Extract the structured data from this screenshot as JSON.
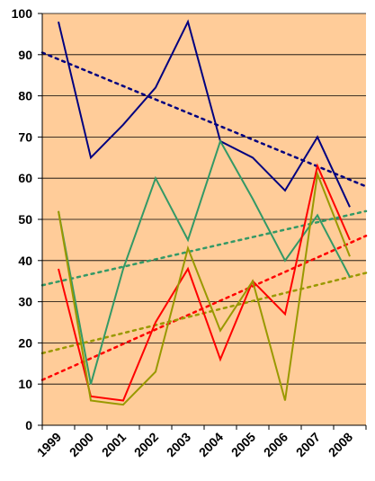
{
  "chart_data": {
    "type": "line",
    "categories": [
      "1999",
      "2000",
      "2001",
      "2002",
      "2003",
      "2004",
      "2005",
      "2006",
      "2007",
      "2008"
    ],
    "ylim": [
      0,
      100
    ],
    "y_ticks": [
      0,
      10,
      20,
      30,
      40,
      50,
      60,
      70,
      80,
      90,
      100
    ],
    "grid": true,
    "legend": "none",
    "plot_background": "#FFCC99",
    "gridline_color": "#000000",
    "series": [
      {
        "values": [
          98,
          65,
          73,
          82,
          98,
          69,
          65,
          57,
          70,
          53
        ],
        "color": "#000080"
      },
      {
        "values": [
          52,
          10,
          38,
          60,
          45,
          69,
          55,
          40,
          51,
          36
        ],
        "color": "#339966"
      },
      {
        "values": [
          38,
          7,
          6,
          25,
          38,
          16,
          35,
          27,
          63,
          45
        ],
        "color": "#FF0000"
      },
      {
        "values": [
          52,
          6,
          5,
          13,
          43,
          23,
          35,
          6,
          61,
          41
        ],
        "color": "#999900"
      }
    ],
    "trendlines": [
      {
        "type": "linear-dotted",
        "start": [
          0,
          90.5
        ],
        "end": [
          10,
          58
        ],
        "color": "#000080"
      },
      {
        "type": "linear-dotted",
        "start": [
          0,
          34
        ],
        "end": [
          10,
          52
        ],
        "color": "#339966"
      },
      {
        "type": "linear-dotted",
        "start": [
          0,
          11
        ],
        "end": [
          10,
          46
        ],
        "color": "#FF0000"
      },
      {
        "type": "linear-dotted",
        "start": [
          0,
          17.5
        ],
        "end": [
          10,
          37
        ],
        "color": "#999900"
      }
    ]
  }
}
